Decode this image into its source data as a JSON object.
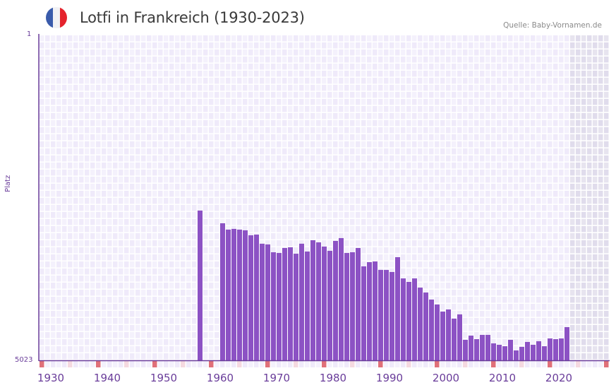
{
  "header": {
    "title": "Lotfi in Frankreich (1930-2023)",
    "source": "Quelle: Baby-Vornamen.de",
    "flag_colors": [
      "#3a5bab",
      "#f1f1f4",
      "#e5232d"
    ]
  },
  "axis": {
    "y_top_label": "1",
    "y_bottom_label": "5023",
    "y_title": "Platz",
    "x_labels": [
      "1930",
      "1940",
      "1950",
      "1960",
      "1970",
      "1980",
      "1990",
      "2000",
      "2010",
      "2020"
    ]
  },
  "colors": {
    "bar": "#8c52c4",
    "axis_line": "#6a3d9a",
    "grid_cell_a": "#efeafa",
    "grid_cell_b": "#f4f1fc",
    "future_cell_a": "#e0dcec",
    "future_cell_b": "#e7e4ef",
    "decade_marker": "#e07079",
    "half_decade_marker": "#f5d9e0",
    "label_text": "#6a3d9a"
  },
  "chart_data": {
    "type": "bar",
    "title": "Lotfi in Frankreich (1930-2023)",
    "xlabel": "",
    "ylabel": "Platz",
    "y_inverted": true,
    "ylim": [
      5023,
      1
    ],
    "xlim": [
      1930,
      2030
    ],
    "grid": true,
    "shaded_future_from": 2024,
    "x": [
      1958,
      1962,
      1963,
      1964,
      1965,
      1966,
      1967,
      1968,
      1969,
      1970,
      1971,
      1972,
      1973,
      1974,
      1975,
      1976,
      1977,
      1978,
      1979,
      1980,
      1981,
      1982,
      1983,
      1984,
      1985,
      1986,
      1987,
      1988,
      1989,
      1990,
      1991,
      1992,
      1993,
      1994,
      1995,
      1996,
      1997,
      1998,
      1999,
      2000,
      2001,
      2002,
      2003,
      2004,
      2005,
      2006,
      2007,
      2008,
      2009,
      2010,
      2011,
      2012,
      2013,
      2014,
      2015,
      2016,
      2017,
      2018,
      2019,
      2020,
      2021,
      2022,
      2023
    ],
    "values": [
      2709,
      2905,
      3003,
      2992,
      3003,
      3014,
      3091,
      3080,
      3221,
      3232,
      3353,
      3364,
      3287,
      3276,
      3375,
      3221,
      3342,
      3167,
      3200,
      3265,
      3331,
      3178,
      3134,
      3364,
      3353,
      3287,
      3571,
      3506,
      3495,
      3626,
      3626,
      3658,
      3429,
      3757,
      3811,
      3757,
      3899,
      3975,
      4084,
      4160,
      4270,
      4237,
      4379,
      4313,
      4706,
      4641,
      4695,
      4630,
      4630,
      4761,
      4783,
      4805,
      4706,
      4870,
      4815,
      4739,
      4783,
      4728,
      4805,
      4685,
      4695,
      4685,
      4510
    ]
  }
}
